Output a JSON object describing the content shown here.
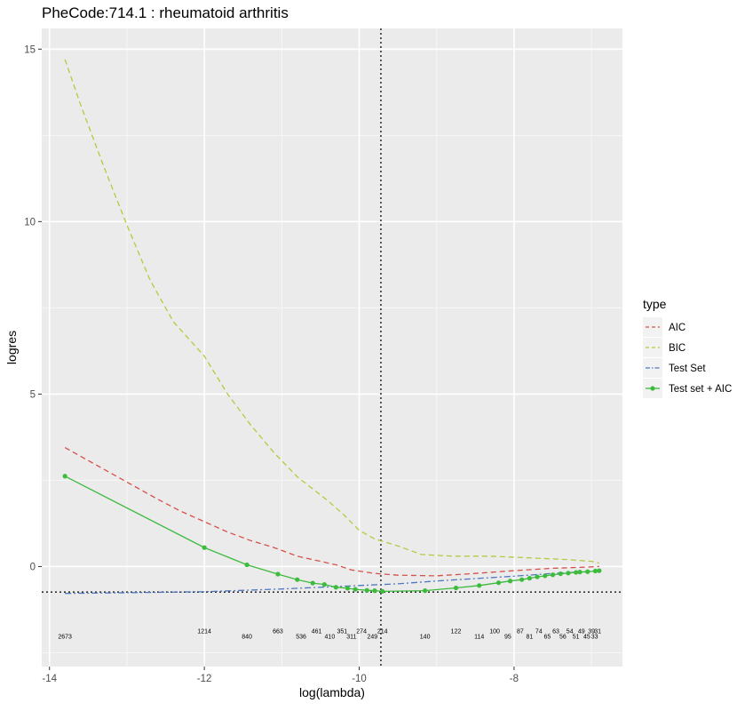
{
  "chart_data": {
    "type": "line",
    "title": "PheCode:714.1 :  rheumatoid arthritis",
    "xlabel": "log(lambda)",
    "ylabel": "logres",
    "xlim": [
      -14.1,
      -6.6
    ],
    "ylim": [
      -2.9,
      15.6
    ],
    "x_ticks": [
      -14,
      -12,
      -10,
      -8
    ],
    "y_ticks": [
      0,
      5,
      10,
      15
    ],
    "x_tick_labels": [
      "-14",
      "-12",
      "-10",
      "-8"
    ],
    "y_tick_labels": [
      "0",
      "5",
      "10",
      "15"
    ],
    "grid": true,
    "legend": {
      "title": "type",
      "placement": "right"
    },
    "series": [
      {
        "name": "AIC",
        "color": "#d6504a",
        "dash": "dashed",
        "points": [
          [
            -13.8,
            3.45
          ],
          [
            -13.4,
            2.95
          ],
          [
            -13.0,
            2.45
          ],
          [
            -12.6,
            1.95
          ],
          [
            -12.3,
            1.6
          ],
          [
            -12.0,
            1.3
          ],
          [
            -11.7,
            1.0
          ],
          [
            -11.4,
            0.75
          ],
          [
            -11.1,
            0.55
          ],
          [
            -10.8,
            0.3
          ],
          [
            -10.5,
            0.15
          ],
          [
            -10.3,
            0.05
          ],
          [
            -10.1,
            -0.1
          ],
          [
            -9.8,
            -0.2
          ],
          [
            -9.5,
            -0.25
          ],
          [
            -9.0,
            -0.27
          ],
          [
            -8.5,
            -0.2
          ],
          [
            -8.0,
            -0.12
          ],
          [
            -7.5,
            -0.05
          ],
          [
            -7.1,
            -0.02
          ],
          [
            -6.9,
            0.0
          ]
        ]
      },
      {
        "name": "BIC",
        "color": "#b8c83c",
        "dash": "dashed",
        "points": [
          [
            -13.8,
            14.7
          ],
          [
            -13.6,
            13.4
          ],
          [
            -13.3,
            11.6
          ],
          [
            -13.0,
            9.9
          ],
          [
            -12.7,
            8.3
          ],
          [
            -12.4,
            7.1
          ],
          [
            -12.0,
            6.1
          ],
          [
            -11.7,
            5.0
          ],
          [
            -11.4,
            4.1
          ],
          [
            -11.1,
            3.3
          ],
          [
            -10.8,
            2.6
          ],
          [
            -10.4,
            1.9
          ],
          [
            -10.2,
            1.5
          ],
          [
            -10.0,
            1.05
          ],
          [
            -9.8,
            0.8
          ],
          [
            -9.5,
            0.6
          ],
          [
            -9.2,
            0.35
          ],
          [
            -8.8,
            0.3
          ],
          [
            -8.3,
            0.3
          ],
          [
            -7.8,
            0.25
          ],
          [
            -7.3,
            0.2
          ],
          [
            -7.0,
            0.15
          ],
          [
            -6.9,
            0.1
          ]
        ]
      },
      {
        "name": "Test Set",
        "color": "#4f77c2",
        "dash": "dashdot",
        "points": [
          [
            -13.8,
            -0.78
          ],
          [
            -13.0,
            -0.76
          ],
          [
            -12.0,
            -0.73
          ],
          [
            -11.0,
            -0.65
          ],
          [
            -10.0,
            -0.55
          ],
          [
            -9.5,
            -0.5
          ],
          [
            -9.0,
            -0.42
          ],
          [
            -8.5,
            -0.35
          ],
          [
            -8.0,
            -0.28
          ],
          [
            -7.5,
            -0.2
          ],
          [
            -7.0,
            -0.14
          ],
          [
            -6.9,
            -0.12
          ]
        ]
      },
      {
        "name": "Test set + AIC",
        "color": "#3dbb3d",
        "dash": "solid",
        "markers": true,
        "points": [
          [
            -13.8,
            2.62
          ],
          [
            -12.0,
            0.55
          ],
          [
            -11.45,
            0.05
          ],
          [
            -11.05,
            -0.22
          ],
          [
            -10.8,
            -0.38
          ],
          [
            -10.6,
            -0.48
          ],
          [
            -10.45,
            -0.52
          ],
          [
            -10.3,
            -0.6
          ],
          [
            -10.15,
            -0.63
          ],
          [
            -10.05,
            -0.66
          ],
          [
            -9.9,
            -0.69
          ],
          [
            -9.8,
            -0.7
          ],
          [
            -9.7,
            -0.72
          ],
          [
            -9.15,
            -0.7
          ],
          [
            -8.75,
            -0.62
          ],
          [
            -8.45,
            -0.55
          ],
          [
            -8.2,
            -0.47
          ],
          [
            -8.05,
            -0.42
          ],
          [
            -7.9,
            -0.38
          ],
          [
            -7.8,
            -0.34
          ],
          [
            -7.7,
            -0.3
          ],
          [
            -7.6,
            -0.27
          ],
          [
            -7.5,
            -0.24
          ],
          [
            -7.4,
            -0.21
          ],
          [
            -7.3,
            -0.19
          ],
          [
            -7.2,
            -0.17
          ],
          [
            -7.15,
            -0.16
          ],
          [
            -7.05,
            -0.15
          ],
          [
            -6.95,
            -0.13
          ],
          [
            -6.9,
            -0.12
          ]
        ]
      }
    ],
    "reference_lines": [
      {
        "orientation": "vertical",
        "value": -9.72,
        "style": "dotted",
        "color": "#333333"
      },
      {
        "orientation": "horizontal",
        "value": -0.74,
        "style": "dotted",
        "color": "#333333"
      }
    ],
    "annotations": [
      {
        "text": "2673",
        "x": -13.8,
        "y": -2.09
      },
      {
        "text": "1214",
        "x": -12.0,
        "y": -1.93
      },
      {
        "text": "840",
        "x": -11.45,
        "y": -2.09
      },
      {
        "text": "663",
        "x": -11.05,
        "y": -1.93
      },
      {
        "text": "536",
        "x": -10.75,
        "y": -2.09
      },
      {
        "text": "461",
        "x": -10.55,
        "y": -1.93
      },
      {
        "text": "410",
        "x": -10.38,
        "y": -2.09
      },
      {
        "text": "351",
        "x": -10.22,
        "y": -1.93
      },
      {
        "text": "311",
        "x": -10.1,
        "y": -2.09
      },
      {
        "text": "274",
        "x": -9.97,
        "y": -1.93
      },
      {
        "text": "249",
        "x": -9.83,
        "y": -2.09
      },
      {
        "text": "214",
        "x": -9.7,
        "y": -1.93
      },
      {
        "text": "140",
        "x": -9.15,
        "y": -2.09
      },
      {
        "text": "122",
        "x": -8.75,
        "y": -1.93
      },
      {
        "text": "114",
        "x": -8.45,
        "y": -2.09
      },
      {
        "text": "100",
        "x": -8.25,
        "y": -1.93
      },
      {
        "text": "95",
        "x": -8.08,
        "y": -2.09
      },
      {
        "text": "87",
        "x": -7.92,
        "y": -1.93
      },
      {
        "text": "81",
        "x": -7.8,
        "y": -2.09
      },
      {
        "text": "74",
        "x": -7.68,
        "y": -1.93
      },
      {
        "text": "65",
        "x": -7.57,
        "y": -2.09
      },
      {
        "text": "63",
        "x": -7.46,
        "y": -1.93
      },
      {
        "text": "56",
        "x": -7.37,
        "y": -2.09
      },
      {
        "text": "54",
        "x": -7.28,
        "y": -1.93
      },
      {
        "text": "51",
        "x": -7.2,
        "y": -2.09
      },
      {
        "text": "49",
        "x": -7.13,
        "y": -1.93
      },
      {
        "text": "45",
        "x": -7.06,
        "y": -2.09
      },
      {
        "text": "39",
        "x": -7.0,
        "y": -1.93
      },
      {
        "text": "33",
        "x": -6.96,
        "y": -2.09
      },
      {
        "text": "31",
        "x": -6.92,
        "y": -1.93
      }
    ]
  }
}
